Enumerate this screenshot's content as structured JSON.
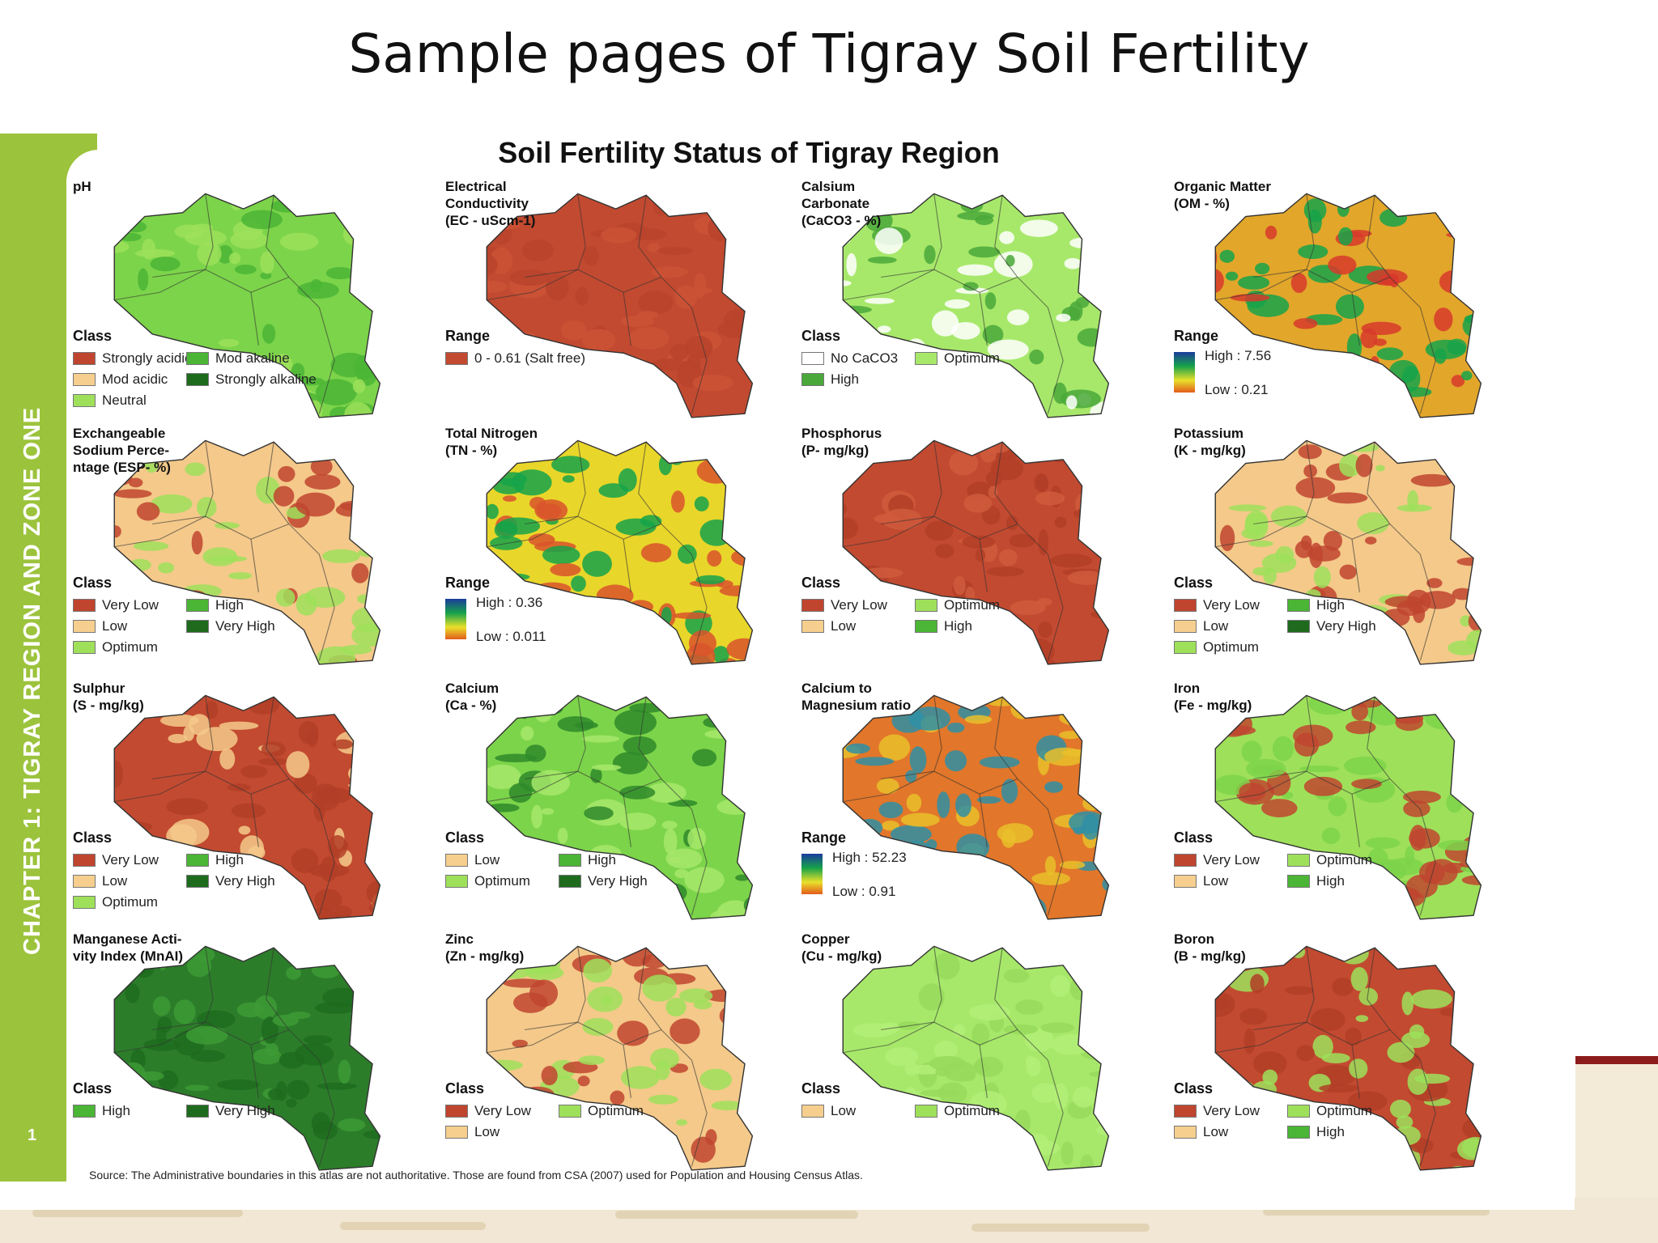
{
  "slide_title": "Sample pages of Tigray Soil Fertility",
  "spine_text": "CHAPTER 1: TIGRAY REGION AND ZONE ONE",
  "page_number": "1",
  "page_title": "Soil Fertility Status of Tigray Region",
  "source": "Source: The Administrative boundaries in this atlas are not authoritative. Those are found from CSA (2007) used for Population and Housing Census Atlas.",
  "maps": [
    {
      "id": "ph",
      "label": "pH",
      "legend_title": "Class",
      "palette": [
        "#7cd44a",
        "#4bb535",
        "#9ee05a"
      ],
      "items": [
        {
          "text": "Strongly acidic",
          "color": "#c0452f"
        },
        {
          "text": "Mod akaline",
          "color": "#4bb535"
        },
        {
          "text": "Mod acidic",
          "color": "#f6cf8e"
        },
        {
          "text": "Strongly alkaline",
          "color": "#1e6b1e"
        },
        {
          "text": "Neutral",
          "color": "#9ee05a"
        }
      ]
    },
    {
      "id": "ec",
      "label": "Electrical\nConductivity\n(EC - uScm-1)",
      "legend_title": "Range",
      "palette": [
        "#c24a30",
        "#b8432b",
        "#cc5236"
      ],
      "items": [
        {
          "text": "0 - 0.61 (Salt free)",
          "color": "#c24a30"
        }
      ]
    },
    {
      "id": "caco3",
      "label": "Calsium\nCarbonate\n(CaCO3 - %)",
      "legend_title": "Class",
      "palette": [
        "#a7e86a",
        "#ffffff",
        "#4aa83a"
      ],
      "items": [
        {
          "text": "No CaCO3",
          "color": "#ffffff"
        },
        {
          "text": "Optimum",
          "color": "#a7e86a"
        },
        {
          "text": "High",
          "color": "#4aa83a"
        }
      ]
    },
    {
      "id": "om",
      "label": "Organic Matter\n(OM - %)",
      "legend_title": "Range",
      "palette": [
        "#e2a62a",
        "#16a34a",
        "#d7392b"
      ],
      "ramp": {
        "high": "High : 7.56",
        "low": "Low : 0.21"
      }
    },
    {
      "id": "esp",
      "label": "Exchangeable\nSodium Perce-\nntage (ESP- %)",
      "legend_title": "Class",
      "palette": [
        "#f4c98a",
        "#c0452f",
        "#9ee05a"
      ],
      "items": [
        {
          "text": "Very Low",
          "color": "#c0452f"
        },
        {
          "text": "High",
          "color": "#4bb535"
        },
        {
          "text": "Low",
          "color": "#f6cf8e"
        },
        {
          "text": "Very High",
          "color": "#1e6b1e"
        },
        {
          "text": "Optimum",
          "color": "#9ee05a"
        }
      ]
    },
    {
      "id": "tn",
      "label": "Total Nitrogen\n(TN - %)",
      "legend_title": "Range",
      "palette": [
        "#e9d62a",
        "#16a34a",
        "#d9532b"
      ],
      "ramp": {
        "high": "High : 0.36",
        "low": "Low : 0.011"
      }
    },
    {
      "id": "p",
      "label": "Phosphorus\n(P- mg/kg)",
      "legend_title": "Class",
      "palette": [
        "#c24a30",
        "#b23e27",
        "#d05a3c"
      ],
      "items": [
        {
          "text": "Very Low",
          "color": "#c0452f"
        },
        {
          "text": "Optimum",
          "color": "#9ee05a"
        },
        {
          "text": "Low",
          "color": "#f6cf8e"
        },
        {
          "text": "High",
          "color": "#4bb535"
        }
      ]
    },
    {
      "id": "k",
      "label": "Potassium\n(K - mg/kg)",
      "legend_title": "Class",
      "palette": [
        "#f4c98a",
        "#c0452f",
        "#9ee05a"
      ],
      "items": [
        {
          "text": "Very Low",
          "color": "#c0452f"
        },
        {
          "text": "High",
          "color": "#4bb535"
        },
        {
          "text": "Low",
          "color": "#f6cf8e"
        },
        {
          "text": "Very High",
          "color": "#1e6b1e"
        },
        {
          "text": "Optimum",
          "color": "#9ee05a"
        }
      ]
    },
    {
      "id": "s",
      "label": "Sulphur\n(S - mg/kg)",
      "legend_title": "Class",
      "palette": [
        "#c24a30",
        "#f4c98a",
        "#b23e27"
      ],
      "items": [
        {
          "text": "Very Low",
          "color": "#c0452f"
        },
        {
          "text": "High",
          "color": "#4bb535"
        },
        {
          "text": "Low",
          "color": "#f6cf8e"
        },
        {
          "text": "Very High",
          "color": "#1e6b1e"
        },
        {
          "text": "Optimum",
          "color": "#9ee05a"
        }
      ]
    },
    {
      "id": "ca",
      "label": "Calcium\n(Ca - %)",
      "legend_title": "Class",
      "palette": [
        "#7cd44a",
        "#2f8a2a",
        "#a7e86a"
      ],
      "items": [
        {
          "text": "Low",
          "color": "#f6cf8e"
        },
        {
          "text": "High",
          "color": "#4bb535"
        },
        {
          "text": "Optimum",
          "color": "#9ee05a"
        },
        {
          "text": "Very High",
          "color": "#1e6b1e"
        }
      ]
    },
    {
      "id": "camg",
      "label": "Calcium to\nMagnesium ratio",
      "legend_title": "Range",
      "palette": [
        "#e2762a",
        "#2f8fa5",
        "#e9c02a"
      ],
      "ramp": {
        "high": "High : 52.23",
        "low": "Low : 0.91"
      }
    },
    {
      "id": "fe",
      "label": "Iron\n(Fe - mg/kg)",
      "legend_title": "Class",
      "palette": [
        "#9ee05a",
        "#c0452f",
        "#7cd44a"
      ],
      "items": [
        {
          "text": "Very Low",
          "color": "#c0452f"
        },
        {
          "text": "Optimum",
          "color": "#9ee05a"
        },
        {
          "text": "Low",
          "color": "#f6cf8e"
        },
        {
          "text": "High",
          "color": "#4bb535"
        }
      ]
    },
    {
      "id": "mnai",
      "label": "Manganese Acti-\nvity Index (MnAI)",
      "legend_title": "Class",
      "palette": [
        "#2c7d2a",
        "#1e6b1e",
        "#3d9a35"
      ],
      "items": [
        {
          "text": "High",
          "color": "#4bb535"
        },
        {
          "text": "Very High",
          "color": "#1e6b1e"
        }
      ]
    },
    {
      "id": "zn",
      "label": "Zinc\n(Zn - mg/kg)",
      "legend_title": "Class",
      "palette": [
        "#f4c98a",
        "#c0452f",
        "#9ee05a"
      ],
      "items": [
        {
          "text": "Very Low",
          "color": "#c0452f"
        },
        {
          "text": "Optimum",
          "color": "#9ee05a"
        },
        {
          "text": "Low",
          "color": "#f6cf8e"
        }
      ]
    },
    {
      "id": "cu",
      "label": "Copper\n(Cu - mg/kg)",
      "legend_title": "Class",
      "palette": [
        "#a7e86a",
        "#98db5c",
        "#b3ee78"
      ],
      "items": [
        {
          "text": "Low",
          "color": "#f6cf8e"
        },
        {
          "text": "Optimum",
          "color": "#9ee05a"
        }
      ]
    },
    {
      "id": "b",
      "label": "Boron\n(B - mg/kg)",
      "legend_title": "Class",
      "palette": [
        "#c24a30",
        "#9ee05a",
        "#b23e27"
      ],
      "items": [
        {
          "text": "Very Low",
          "color": "#c0452f"
        },
        {
          "text": "Optimum",
          "color": "#9ee05a"
        },
        {
          "text": "Low",
          "color": "#f6cf8e"
        },
        {
          "text": "High",
          "color": "#4bb535"
        }
      ]
    }
  ]
}
